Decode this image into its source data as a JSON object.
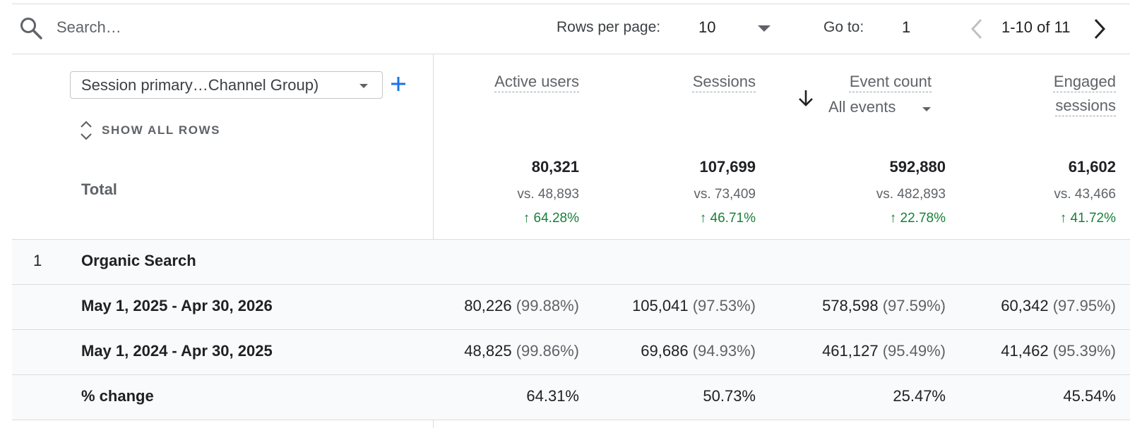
{
  "toolbar": {
    "search_placeholder": "Search…",
    "rows_per_page_label": "Rows per page:",
    "rows_per_page_value": "10",
    "goto_label": "Go to:",
    "goto_value": "1",
    "page_range": "1-10 of 11"
  },
  "header": {
    "dimension_select": "Session primary…Channel Group)",
    "show_all_rows": "SHOW ALL ROWS",
    "metrics": {
      "active_users": "Active users",
      "sessions": "Sessions",
      "event_count": "Event count",
      "event_filter": "All events",
      "engaged_line1": "Engaged",
      "engaged_line2": "sessions"
    }
  },
  "totals": {
    "label": "Total",
    "active_users": {
      "value": "80,321",
      "vs": "vs. 48,893",
      "change": "64.28%"
    },
    "sessions": {
      "value": "107,699",
      "vs": "vs. 73,409",
      "change": "46.71%"
    },
    "event_count": {
      "value": "592,880",
      "vs": "vs. 482,893",
      "change": "22.78%"
    },
    "engaged_sessions": {
      "value": "61,602",
      "vs": "vs. 43,466",
      "change": "41.72%"
    }
  },
  "rows": {
    "group": {
      "index": "1",
      "label": "Organic Search"
    },
    "current": {
      "label": "May 1, 2025 - Apr 30, 2026",
      "active_users": "80,226",
      "active_users_pct": "(99.88%)",
      "sessions": "105,041",
      "sessions_pct": "(97.53%)",
      "event_count": "578,598",
      "event_count_pct": "(97.59%)",
      "engaged_sessions": "60,342",
      "engaged_sessions_pct": "(97.95%)"
    },
    "previous": {
      "label": "May 1, 2024 - Apr 30, 2025",
      "active_users": "48,825",
      "active_users_pct": "(99.86%)",
      "sessions": "69,686",
      "sessions_pct": "(94.93%)",
      "event_count": "461,127",
      "event_count_pct": "(95.49%)",
      "engaged_sessions": "41,462",
      "engaged_sessions_pct": "(95.39%)"
    },
    "change": {
      "label": "% change",
      "active_users": "64.31%",
      "sessions": "50.73%",
      "event_count": "25.47%",
      "engaged_sessions": "45.54%"
    }
  },
  "colors": {
    "accent": "#1a73e8",
    "positive": "#188038",
    "row_bg": "#f8fafb",
    "border": "#dadce0"
  }
}
